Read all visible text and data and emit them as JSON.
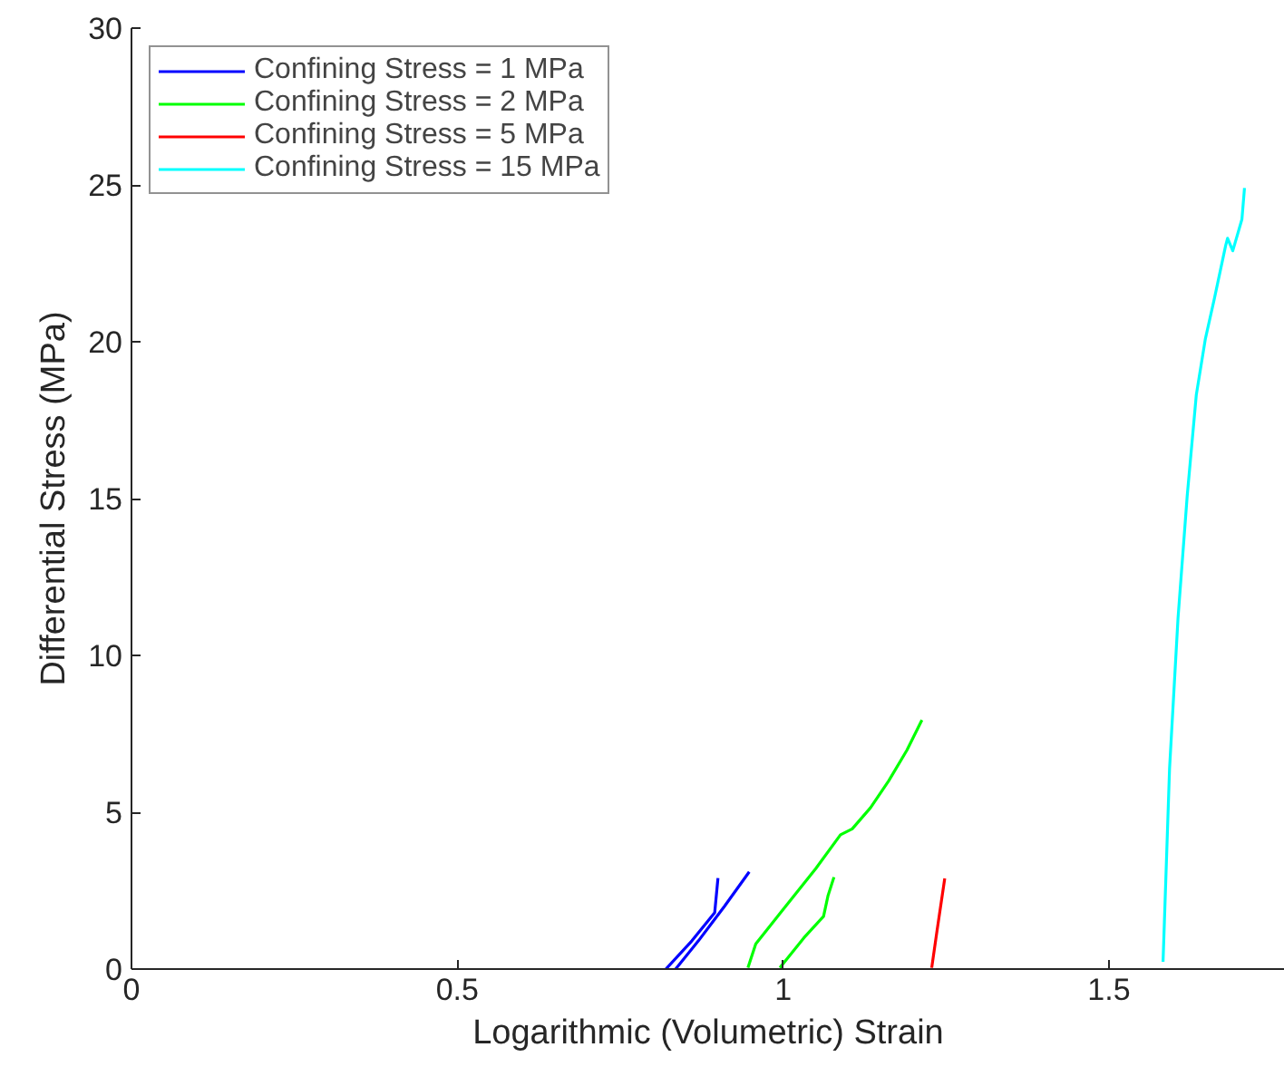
{
  "chart_data": {
    "type": "line",
    "xlabel": "Logarithmic (Volumetric) Strain",
    "ylabel": "Differential Stress (MPa)",
    "xlim": [
      0,
      1.77
    ],
    "ylim": [
      0,
      30
    ],
    "xticks": [
      0,
      0.5,
      1,
      1.5
    ],
    "yticks": [
      0,
      5,
      10,
      15,
      20,
      25,
      30
    ],
    "grid": false,
    "legend": "top left",
    "line_style": "solid",
    "marker": "none",
    "series": [
      {
        "name": "Confining Stress = 1 MPa",
        "color": "#0000ff",
        "x": [
          0.82,
          0.86,
          0.895,
          0.9,
          null,
          0.835,
          0.87,
          0.91,
          0.948
        ],
        "values": [
          0,
          0.9,
          1.8,
          2.9,
          null,
          0,
          0.9,
          2.0,
          3.1
        ]
      },
      {
        "name": "Confining Stress = 2 MPa",
        "color": "#00ff00",
        "x": [
          0.946,
          0.958,
          0.995,
          1.05,
          1.088,
          1.106,
          1.134,
          1.162,
          1.19,
          1.213,
          null,
          0.995,
          1.032,
          1.062,
          1.069,
          1.078
        ],
        "values": [
          0.04,
          0.8,
          1.77,
          3.2,
          4.28,
          4.47,
          5.14,
          6.0,
          6.98,
          7.94,
          null,
          0.04,
          1.0,
          1.68,
          2.35,
          2.93
        ]
      },
      {
        "name": "Confining Stress = 5 MPa",
        "color": "#ff0000",
        "x": [
          1.228,
          1.236,
          1.248
        ],
        "values": [
          0.04,
          1.2,
          2.89
        ]
      },
      {
        "name": "Confining Stress = 15 MPa",
        "color": "#00ffff",
        "x": [
          1.583,
          1.593,
          1.606,
          1.62,
          1.634,
          1.648,
          1.662,
          1.679,
          1.682,
          1.69,
          1.704,
          1.708
        ],
        "values": [
          0.23,
          6.4,
          11.2,
          15.07,
          18.3,
          20.1,
          21.4,
          23.06,
          23.3,
          22.9,
          23.9,
          24.9
        ]
      }
    ]
  }
}
